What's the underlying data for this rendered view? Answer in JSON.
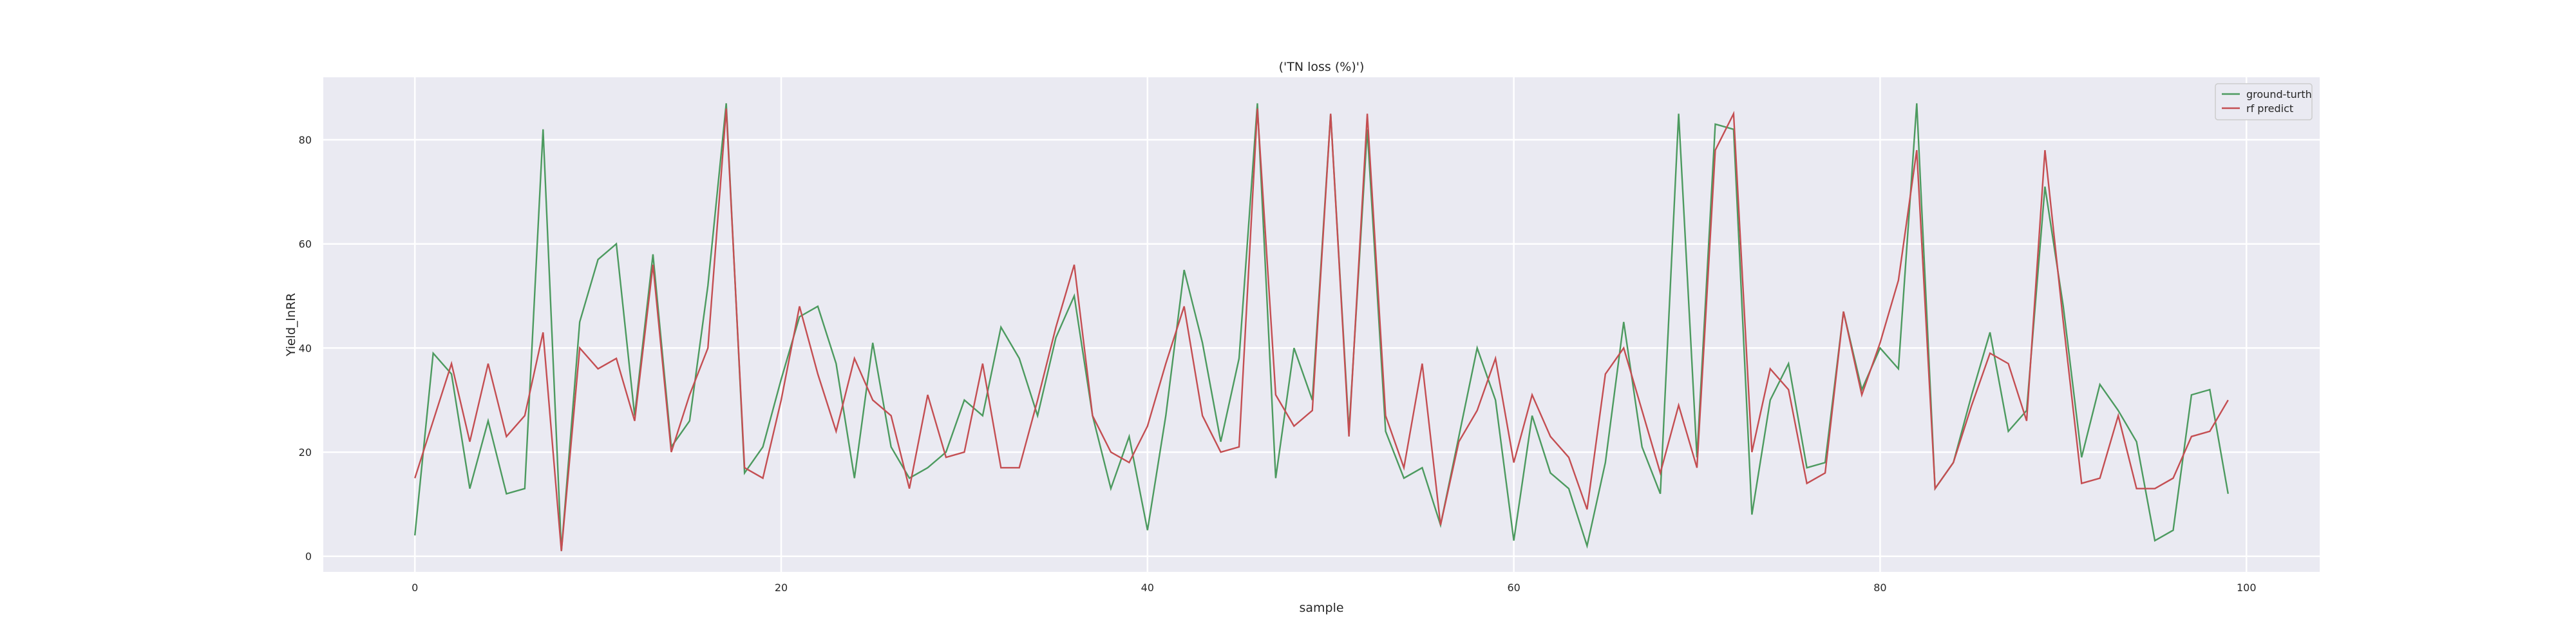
{
  "chart_data": {
    "type": "line",
    "title": "('TN loss (%)')",
    "xlabel": "sample",
    "ylabel": "Yield_lnRR",
    "xlim": [
      -5,
      104
    ],
    "ylim": [
      -3,
      92
    ],
    "xticks": [
      0,
      20,
      40,
      60,
      80,
      100
    ],
    "yticks": [
      0,
      20,
      40,
      60,
      80
    ],
    "grid": true,
    "legend_position": "top-right",
    "series": [
      {
        "name": "ground-turth",
        "color": "#4c9a5f",
        "values": [
          4,
          39,
          35,
          13,
          26,
          12,
          13,
          82,
          1,
          45,
          57,
          60,
          27,
          58,
          21,
          26,
          52,
          87,
          16,
          21,
          34,
          46,
          48,
          37,
          15,
          41,
          21,
          15,
          17,
          20,
          30,
          27,
          44,
          38,
          27,
          42,
          50,
          27,
          13,
          23,
          5,
          27,
          55,
          41,
          22,
          38,
          87,
          15,
          40,
          30,
          85,
          24,
          82,
          24,
          15,
          17,
          6,
          23,
          40,
          30,
          3,
          27,
          16,
          13,
          2,
          18,
          45,
          21,
          12,
          85,
          19,
          83,
          82,
          8,
          30,
          37,
          17,
          18,
          47,
          32,
          40,
          36,
          87,
          13,
          18,
          31,
          43,
          24,
          28,
          71,
          48,
          19,
          33,
          28,
          22,
          3,
          5,
          31,
          32,
          12
        ]
      },
      {
        "name": "rf predict",
        "color": "#c44e52",
        "values": [
          15,
          26,
          37,
          22,
          37,
          23,
          27,
          43,
          1,
          40,
          36,
          38,
          26,
          56,
          20,
          31,
          40,
          86,
          17,
          15,
          30,
          48,
          35,
          24,
          38,
          30,
          27,
          13,
          31,
          19,
          20,
          37,
          17,
          17,
          30,
          44,
          56,
          27,
          20,
          18,
          25,
          37,
          48,
          27,
          20,
          21,
          86,
          31,
          25,
          28,
          85,
          23,
          85,
          27,
          17,
          37,
          6,
          22,
          28,
          38,
          18,
          31,
          23,
          19,
          9,
          35,
          40,
          28,
          16,
          29,
          17,
          78,
          85,
          20,
          36,
          32,
          14,
          16,
          47,
          31,
          41,
          53,
          78,
          13,
          18,
          29,
          39,
          37,
          26,
          78,
          45,
          14,
          15,
          27,
          13,
          13,
          15,
          23,
          24,
          30
        ]
      }
    ]
  }
}
